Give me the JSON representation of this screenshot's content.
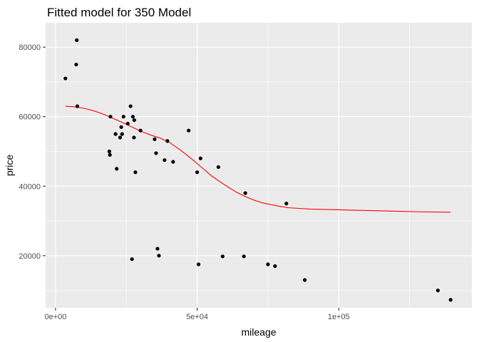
{
  "chart_data": {
    "type": "scatter",
    "title": "Fitted model for 350 Model",
    "xlabel": "mileage",
    "ylabel": "price",
    "xlim": [
      -3500,
      147000
    ],
    "ylim": [
      5000,
      87000
    ],
    "grid": true,
    "legend": "none",
    "x_ticks": [
      {
        "value": 0,
        "label": "0e+00"
      },
      {
        "value": 50000,
        "label": "5e+04"
      },
      {
        "value": 100000,
        "label": "1e+05"
      }
    ],
    "x_minor_ticks": [
      25000,
      75000,
      125000
    ],
    "y_ticks": [
      {
        "value": 20000,
        "label": "20000"
      },
      {
        "value": 40000,
        "label": "40000"
      },
      {
        "value": 60000,
        "label": "60000"
      },
      {
        "value": 80000,
        "label": "80000"
      }
    ],
    "y_minor_ticks": [
      10000,
      30000,
      50000,
      70000
    ],
    "colors": {
      "panel": "#ebebeb",
      "grid": "#ffffff",
      "points": "#000000",
      "fit_line": "#ff0000",
      "tick_mark": "#333333"
    },
    "series": [
      {
        "type": "scatter",
        "x": [
          3500,
          7300,
          7500,
          7700,
          19000,
          19200,
          19400,
          21200,
          21600,
          22800,
          23200,
          23500,
          24000,
          25500,
          26500,
          27000,
          27300,
          27700,
          27800,
          28200,
          30000,
          35000,
          35500,
          36000,
          36500,
          38500,
          39500,
          41500,
          47000,
          50000,
          50500,
          51200,
          57500,
          59000,
          66500,
          67000,
          75000,
          77500,
          81500,
          88000,
          135000,
          139500
        ],
        "y": [
          71000,
          75000,
          82000,
          63000,
          50000,
          49000,
          60000,
          55000,
          45000,
          54000,
          57000,
          55000,
          60000,
          58000,
          63000,
          19000,
          60000,
          54000,
          59000,
          44000,
          56000,
          53500,
          49500,
          22000,
          20000,
          47500,
          53000,
          47000,
          56000,
          44000,
          17500,
          48000,
          45500,
          19800,
          19800,
          38000,
          17500,
          17000,
          35000,
          13000,
          10000,
          7300
        ]
      },
      {
        "type": "line",
        "x": [
          3500,
          7000,
          10000,
          13000,
          16000,
          19000,
          22000,
          25000,
          28000,
          31000,
          34000,
          37000,
          40000,
          43000,
          46000,
          49000,
          52000,
          55000,
          58000,
          61000,
          64000,
          67000,
          70000,
          73000,
          76000,
          79000,
          82000,
          86000,
          90000,
          95000,
          100000,
          110000,
          120000,
          130000,
          139500
        ],
        "y": [
          63000,
          62800,
          62400,
          61800,
          61000,
          60000,
          58900,
          57800,
          56600,
          55500,
          54600,
          53800,
          52700,
          51000,
          49200,
          47200,
          45100,
          43000,
          41300,
          39700,
          38200,
          37000,
          36000,
          35200,
          34700,
          34200,
          33800,
          33600,
          33400,
          33300,
          33200,
          33000,
          32800,
          32600,
          32500
        ]
      }
    ]
  }
}
